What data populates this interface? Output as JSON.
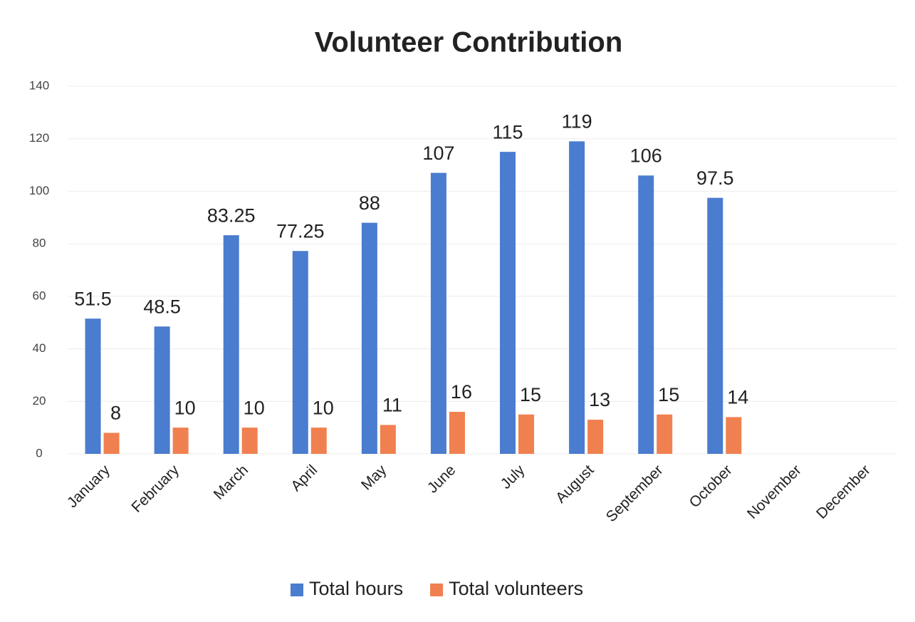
{
  "chart_data": {
    "type": "bar",
    "title": "Volunteer Contribution",
    "categories": [
      "January",
      "February",
      "March",
      "April",
      "May",
      "June",
      "July",
      "August",
      "September",
      "October",
      "November",
      "December"
    ],
    "series": [
      {
        "name": "Total hours",
        "color": "#4a7ccf",
        "values": [
          51.5,
          48.5,
          83.25,
          77.25,
          88,
          107,
          115,
          119,
          106,
          97.5,
          null,
          null
        ]
      },
      {
        "name": "Total volunteers",
        "color": "#f0804f",
        "values": [
          8,
          10,
          10,
          10,
          11,
          16,
          15,
          13,
          15,
          14,
          null,
          null
        ]
      }
    ],
    "ylim": [
      0,
      140
    ],
    "yticks": [
      0,
      20,
      40,
      60,
      80,
      100,
      120,
      140
    ],
    "grid": true,
    "legend": "bottom"
  }
}
